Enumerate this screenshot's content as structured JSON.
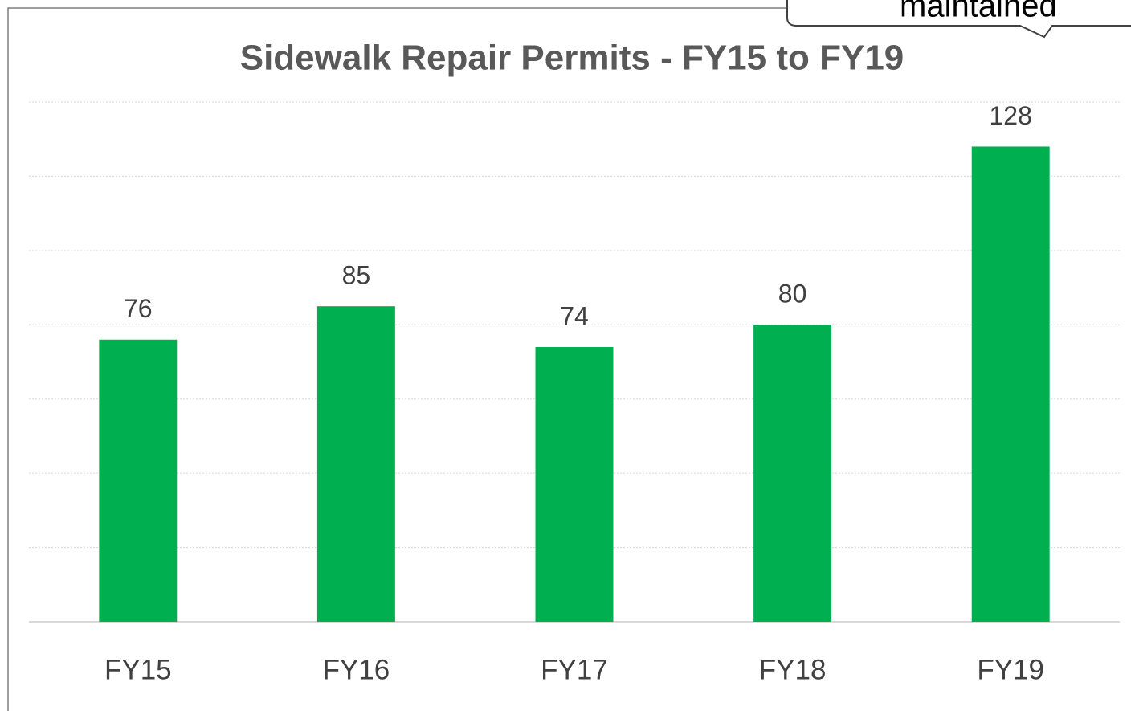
{
  "chart_data": {
    "type": "bar",
    "title": "Sidewalk Repair Permits  - FY15 to FY19",
    "annotation": "maintained",
    "categories": [
      "FY15",
      "FY16",
      "FY17",
      "FY18",
      "FY19"
    ],
    "values": [
      76,
      85,
      74,
      80,
      128
    ],
    "color": "#00b050",
    "ylim": [
      0,
      140
    ],
    "yticks": [
      0,
      20,
      40,
      60,
      80,
      100,
      120,
      140
    ],
    "grid": true
  }
}
